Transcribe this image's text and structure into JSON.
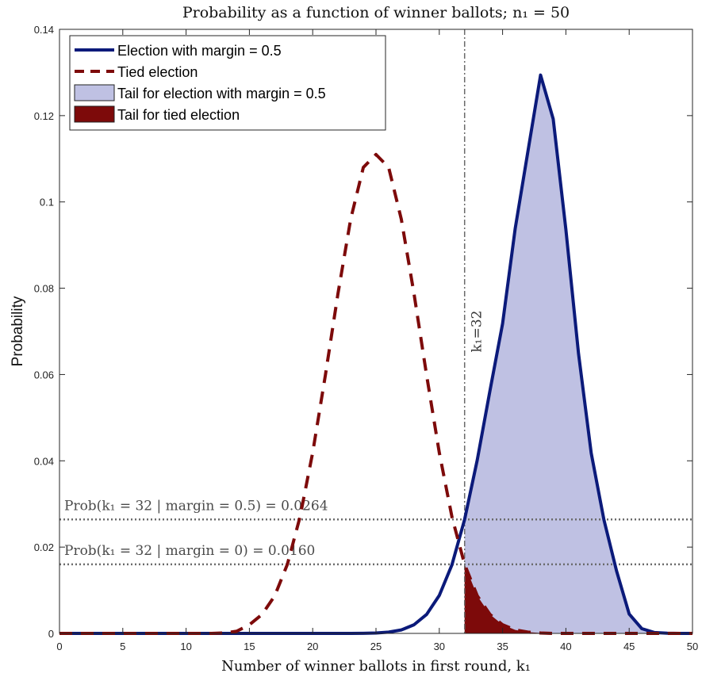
{
  "chart_data": {
    "type": "line",
    "title": "Probability as a function of winner ballots; n₁ = 50",
    "xlabel": "Number of winner ballots in first round, k₁",
    "ylabel": "Probability",
    "xlim": [
      0,
      50
    ],
    "ylim": [
      0,
      0.14
    ],
    "xticks": [
      0,
      5,
      10,
      15,
      20,
      25,
      30,
      35,
      40,
      45,
      50
    ],
    "yticks": [
      0,
      0.02,
      0.04,
      0.06,
      0.08,
      0.1,
      0.12,
      0.14
    ],
    "xtick_labels": [
      "0",
      "5",
      "10",
      "15",
      "20",
      "25",
      "30",
      "35",
      "40",
      "45",
      "50"
    ],
    "ytick_labels": [
      "0",
      "0.02",
      "0.04",
      "0.06",
      "0.08",
      "0.1",
      "0.12",
      "0.14"
    ],
    "grid": false,
    "legend_position": "top-left",
    "series": [
      {
        "name": "Election with margin = 0.5",
        "color": "#0b1a7a",
        "style": "solid",
        "x": [
          0,
          1,
          2,
          3,
          4,
          5,
          6,
          7,
          8,
          9,
          10,
          11,
          12,
          13,
          14,
          15,
          16,
          17,
          18,
          19,
          20,
          21,
          22,
          23,
          24,
          25,
          26,
          27,
          28,
          29,
          30,
          31,
          32,
          33,
          34,
          35,
          36,
          37,
          38,
          39,
          40,
          41,
          42,
          43,
          44,
          45,
          46,
          47,
          48,
          49,
          50
        ],
        "y": [
          0,
          0,
          0,
          0,
          0,
          0,
          0,
          0,
          0,
          0,
          0,
          0,
          0,
          0,
          0,
          0,
          0,
          0,
          0,
          0,
          0,
          0,
          0,
          1e-05,
          3e-05,
          0.0001,
          0.0003,
          0.0008,
          0.002,
          0.0044,
          0.0088,
          0.0159,
          0.0264,
          0.0402,
          0.0562,
          0.0718,
          0.0939,
          0.1117,
          0.1294,
          0.1192,
          0.0936,
          0.0648,
          0.0418,
          0.0264,
          0.0145,
          0.0045,
          0.0011,
          0.0002,
          4e-05,
          1e-05,
          0
        ]
      },
      {
        "name": "Tied election",
        "color": "#7d0a0a",
        "style": "dashed",
        "x": [
          0,
          1,
          2,
          3,
          4,
          5,
          6,
          7,
          8,
          9,
          10,
          11,
          12,
          13,
          14,
          15,
          16,
          17,
          18,
          19,
          20,
          21,
          22,
          23,
          24,
          25,
          26,
          27,
          28,
          29,
          30,
          31,
          32,
          33,
          34,
          35,
          36,
          37,
          38,
          39,
          40,
          41,
          42,
          43,
          44,
          45,
          46,
          47,
          48,
          49,
          50
        ],
        "y": [
          0,
          0,
          0,
          0,
          0,
          0,
          0,
          0,
          0,
          0,
          0,
          0,
          0,
          0.0001,
          0.0005,
          0.002,
          0.0044,
          0.0087,
          0.016,
          0.027,
          0.0419,
          0.0598,
          0.0788,
          0.096,
          0.108,
          0.111,
          0.108,
          0.096,
          0.0788,
          0.0598,
          0.0419,
          0.027,
          0.016,
          0.0087,
          0.0044,
          0.002,
          0.0008,
          0.0003,
          0.0001,
          0,
          0,
          0,
          0,
          0,
          0,
          0,
          0,
          0,
          0,
          0,
          0
        ]
      }
    ],
    "fills": [
      {
        "name": "Tail for election with margin = 0.5",
        "color": "#bfc1e3",
        "from_x": 32,
        "series_index": 0
      },
      {
        "name": "Tail for tied election",
        "color": "#7d0a0a",
        "from_x": 32,
        "series_index": 1
      }
    ],
    "vline": {
      "x": 32,
      "label": "k₁=32"
    },
    "hlines": [
      {
        "y": 0.0264,
        "label": "Prob(k₁ = 32 | margin = 0.5) = 0.0264"
      },
      {
        "y": 0.016,
        "label": "Prob(k₁ = 32 | margin = 0) = 0.0160"
      }
    ]
  }
}
